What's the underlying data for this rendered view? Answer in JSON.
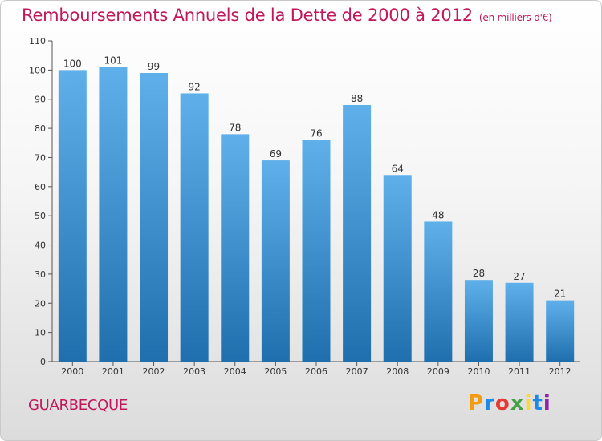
{
  "title": "Remboursements Annuels de la Dette de 2000 à 2012",
  "unit_label": "(en milliers d'€)",
  "commune": "GUARBECQUE",
  "logo": {
    "text": "Proxiti",
    "letter_colors": [
      "#f39c12",
      "#1e88e5",
      "#e53935",
      "#43a047",
      "#fdd835",
      "#1e88e5",
      "#8e24aa"
    ]
  },
  "colors": {
    "title": "#c2185b",
    "bar_top": "#5fb0ea",
    "bar_bottom": "#1f6fae"
  },
  "chart_data": {
    "type": "bar",
    "categories": [
      "2000",
      "2001",
      "2002",
      "2003",
      "2004",
      "2005",
      "2006",
      "2007",
      "2008",
      "2009",
      "2010",
      "2011",
      "2012"
    ],
    "values": [
      100,
      101,
      99,
      92,
      78,
      69,
      76,
      88,
      64,
      48,
      28,
      27,
      21
    ],
    "ylim": [
      0,
      110
    ],
    "yticks": [
      0,
      10,
      20,
      30,
      40,
      50,
      60,
      70,
      80,
      90,
      100,
      110
    ],
    "grid": false
  }
}
